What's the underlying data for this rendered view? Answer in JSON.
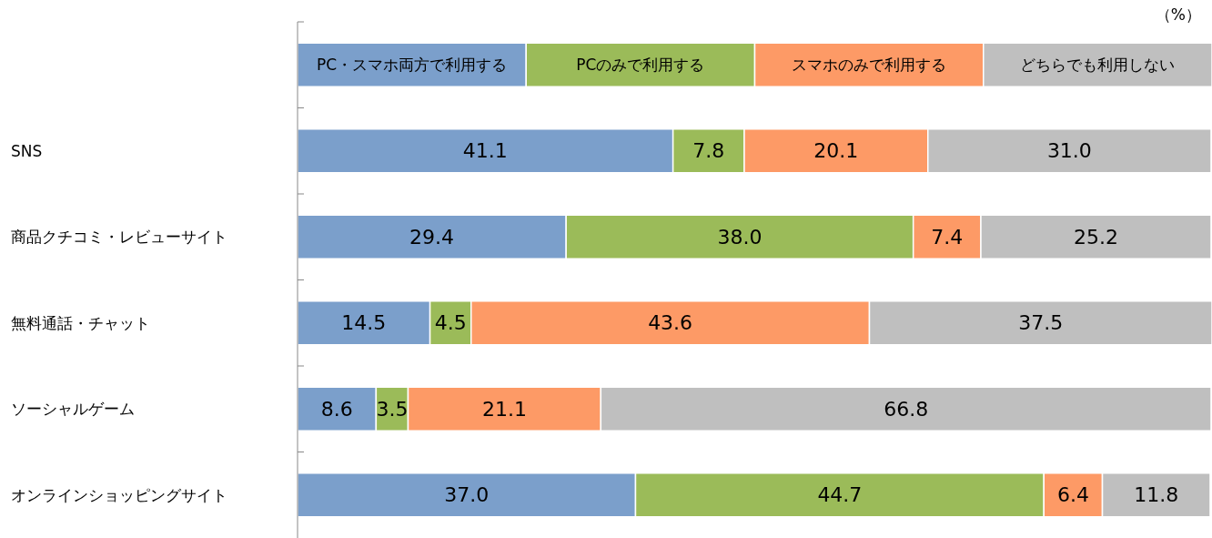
{
  "chart_data": {
    "type": "bar",
    "orientation": "horizontal",
    "stacked": true,
    "legend": "top",
    "annotations": [
      "（%）"
    ],
    "categories": [
      "SNS",
      "商品クチコミ・レビューサイト",
      "無料通話・チャット",
      "ソーシャルゲーム",
      "オンラインショッピングサイト"
    ],
    "series": [
      {
        "name": "PC・スマホ両方で利用する",
        "color": "#7b9fcb",
        "values": [
          41.1,
          29.4,
          14.5,
          8.6,
          37.0
        ],
        "value_labels": [
          "41.1",
          "29.4",
          "14.5",
          "8.6",
          "37.0"
        ]
      },
      {
        "name": "PCのみで利用する",
        "color": "#9bbb59",
        "values": [
          7.8,
          38.0,
          4.5,
          3.5,
          44.7
        ],
        "value_labels": [
          "7.8",
          "38.0",
          "4.5",
          "3.5",
          "44.7"
        ]
      },
      {
        "name": "スマホのみで利用する",
        "color": "#fd9a66",
        "values": [
          20.1,
          7.4,
          43.6,
          21.1,
          6.4
        ],
        "value_labels": [
          "20.1",
          "7.4",
          "43.6",
          "21.1",
          "6.4"
        ]
      },
      {
        "name": "どちらでも利用しない",
        "color": "#bfbfbf",
        "values": [
          31.0,
          25.2,
          37.5,
          66.8,
          11.8
        ],
        "value_labels": [
          "31.0",
          "25.2",
          "37.5",
          "66.8",
          "11.8"
        ]
      }
    ]
  }
}
